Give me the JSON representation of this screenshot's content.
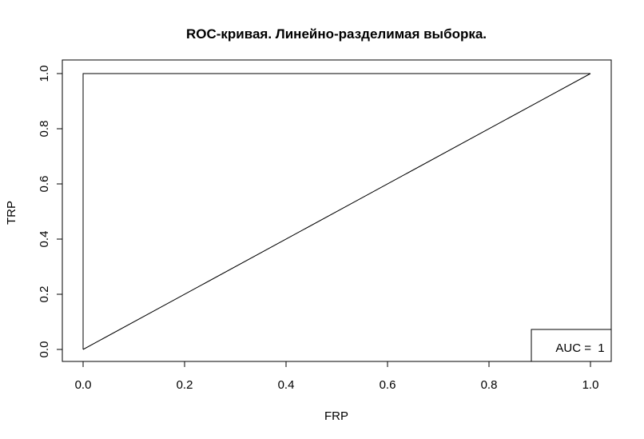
{
  "chart_data": {
    "type": "line",
    "title": "ROC-кривая. Линейно-разделимая выборка.",
    "xlabel": "FRP",
    "ylabel": "TRP",
    "xlim": [
      0,
      1
    ],
    "ylim": [
      0,
      1
    ],
    "x_ticks": [
      "0.0",
      "0.2",
      "0.4",
      "0.6",
      "0.8",
      "1.0"
    ],
    "y_ticks": [
      "0.0",
      "0.2",
      "0.4",
      "0.6",
      "0.8",
      "1.0"
    ],
    "grid": false,
    "legend_position": "bottom-right",
    "legend_text": "AUC =  1",
    "series": [
      {
        "x": [
          0,
          0,
          1
        ],
        "y": [
          0,
          1,
          1
        ],
        "color": "#000000"
      },
      {
        "x": [
          0,
          1
        ],
        "y": [
          0,
          1
        ],
        "color": "#000000"
      }
    ]
  }
}
